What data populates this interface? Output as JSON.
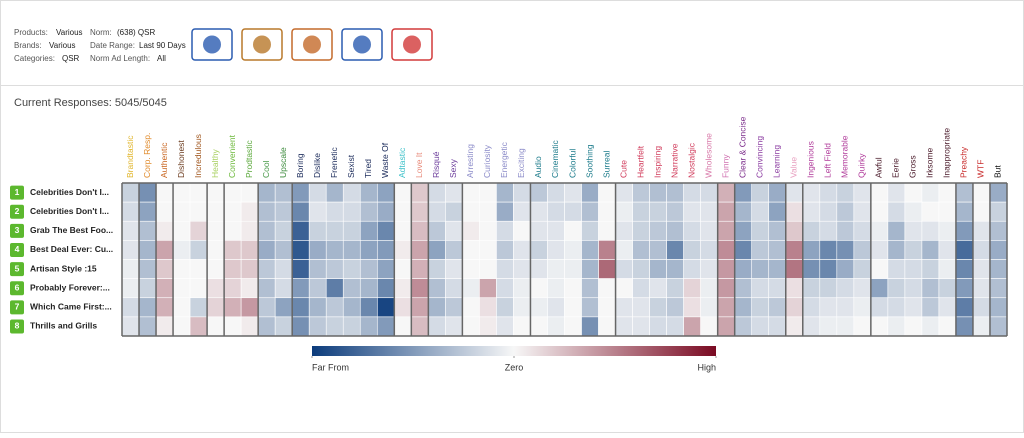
{
  "filters": {
    "products_label": "Products:",
    "products": "Various",
    "brands_label": "Brands:",
    "brands": "Various",
    "categories_label": "Categories:",
    "categories": "QSR",
    "norm_label": "Norm:",
    "norm": "(638) QSR",
    "date_range_label": "Date Range:",
    "date_range": "Last 90 Days",
    "norm_length_label": "Norm Ad Length:",
    "norm_length": "All"
  },
  "brand_logo_colors": [
    "#2a5bb0",
    "#b8782a",
    "#c46a2a",
    "#2a5bb0",
    "#d23a3a"
  ],
  "responses": "Current Responses: 5045/5045",
  "chart_data": {
    "type": "heatmap",
    "categories": [
      "Brandtastic",
      "Corp. Resp.",
      "Authentic",
      "Dishonest",
      "Incredulous",
      "Healthy",
      "Convenient",
      "Prodtastic",
      "Cool",
      "Upscale",
      "Boring",
      "Dislike",
      "Frenetic",
      "Sexist",
      "Tired",
      "Waste Of",
      "Adtastic",
      "Love It",
      "Risqué",
      "Sexy",
      "Arresting",
      "Curiosity",
      "Energetic",
      "Exciting",
      "Audio",
      "Cinematic",
      "Colorful",
      "Soothing",
      "Surreal",
      "Cute",
      "Heartfelt",
      "Inspiring",
      "Narrative",
      "Nostalgic",
      "Wholesome",
      "Funny",
      "Clear & Concise",
      "Convincing",
      "Learning",
      "Value",
      "Ingenious",
      "Left Field",
      "Memorable",
      "Quirky",
      "Awful",
      "Eerie",
      "Gross",
      "Irksome",
      "Inappropriate",
      "Preachy",
      "WTF",
      "But"
    ],
    "category_colors": [
      "#e0b52a",
      "#e08a2a",
      "#c8641e",
      "#6b3b1e",
      "#a0561e",
      "#a8d060",
      "#6cb83a",
      "#5aa83a",
      "#4a9a4a",
      "#3a8a3a",
      "#1a2a5a",
      "#1a2a5a",
      "#1a2a5a",
      "#1a2a5a",
      "#1a2a5a",
      "#1a2a5a",
      "#3ac0c8",
      "#e88a7a",
      "#6a3a9a",
      "#6a3a9a",
      "#8a8ac8",
      "#8a8ac8",
      "#8a8ac8",
      "#8a8ac8",
      "#1a7a8a",
      "#1a7a8a",
      "#1a7a8a",
      "#1a7a8a",
      "#1a7a8a",
      "#d03a5a",
      "#d03a5a",
      "#d03a5a",
      "#d03a5a",
      "#d03a5a",
      "#d878a8",
      "#d070b0",
      "#7a2a8a",
      "#8a3aa0",
      "#8a3aa0",
      "#e8a0c0",
      "#b03a9a",
      "#b03a9a",
      "#b03a9a",
      "#b03a9a",
      "#4a1a2a",
      "#4a1a2a",
      "#4a1a2a",
      "#4a1a2a",
      "#4a1a2a",
      "#c82a2a",
      "#c82a2a",
      "#111111"
    ],
    "rows": [
      "Celebrities Don't I...",
      "Celebrities Don't I...",
      "Grab The Best Foo...",
      "Best Deal Ever: Cu...",
      "Artisan Style :15",
      "Probably Forever:...",
      "Which Came First:...",
      "Thrills and Grills"
    ],
    "row_numbers": [
      1,
      2,
      3,
      4,
      5,
      6,
      7,
      8
    ],
    "values": [
      [
        -0.2,
        -0.15,
        -0.1,
        -0.1,
        -0.05,
        -0.05,
        -0.15,
        -0.1
      ],
      [
        -0.55,
        -0.45,
        -0.3,
        -0.35,
        -0.3,
        -0.2,
        -0.35,
        -0.3
      ],
      [
        0,
        0,
        0.05,
        0.35,
        0.2,
        0.3,
        0.3,
        0.05
      ],
      [
        0,
        0,
        0,
        -0.05,
        0,
        0,
        0,
        0
      ],
      [
        0,
        0,
        0.15,
        -0.2,
        0,
        0,
        -0.2,
        0.25
      ],
      [
        0,
        0,
        0,
        0,
        0,
        0.1,
        0.15,
        0
      ],
      [
        0,
        0,
        0,
        0.2,
        0.2,
        0.15,
        0.3,
        0
      ],
      [
        0,
        0.05,
        0.05,
        0.2,
        0.2,
        0.05,
        0.4,
        0.05
      ],
      [
        -0.35,
        -0.3,
        -0.3,
        -0.4,
        -0.25,
        -0.3,
        -0.25,
        -0.3
      ],
      [
        -0.3,
        -0.25,
        -0.2,
        -0.3,
        -0.15,
        -0.15,
        -0.45,
        -0.2
      ],
      [
        -0.5,
        -0.6,
        -0.8,
        -0.85,
        -0.8,
        -0.5,
        -0.6,
        -0.55
      ],
      [
        -0.15,
        -0.1,
        -0.2,
        -0.4,
        -0.3,
        -0.25,
        -0.35,
        -0.25
      ],
      [
        -0.35,
        -0.15,
        -0.2,
        -0.35,
        -0.25,
        -0.65,
        -0.25,
        -0.2
      ],
      [
        -0.15,
        -0.15,
        -0.2,
        -0.35,
        -0.2,
        -0.3,
        -0.35,
        -0.2
      ],
      [
        -0.35,
        -0.3,
        -0.45,
        -0.45,
        -0.3,
        -0.35,
        -0.6,
        -0.35
      ],
      [
        -0.45,
        -0.4,
        -0.6,
        -0.5,
        -0.45,
        -0.6,
        -0.95,
        -0.5
      ],
      [
        0,
        0,
        0,
        0.05,
        0,
        0.05,
        0.1,
        0
      ],
      [
        0.2,
        0.2,
        0.25,
        0.35,
        0.3,
        0.45,
        0.35,
        0.25
      ],
      [
        -0.15,
        -0.15,
        -0.25,
        -0.45,
        -0.2,
        -0.3,
        -0.35,
        -0.15
      ],
      [
        -0.1,
        -0.2,
        -0.1,
        -0.25,
        -0.1,
        -0.15,
        -0.25,
        -0.1
      ],
      [
        0,
        0,
        0.05,
        0,
        0,
        -0.05,
        0,
        0
      ],
      [
        0,
        0,
        0,
        0,
        0,
        0.35,
        0.1,
        0.05
      ],
      [
        -0.35,
        -0.4,
        -0.15,
        -0.25,
        -0.15,
        -0.15,
        -0.2,
        -0.1
      ],
      [
        -0.15,
        -0.1,
        0,
        -0.1,
        -0.1,
        -0.05,
        -0.05,
        0
      ],
      [
        -0.25,
        -0.1,
        -0.1,
        -0.2,
        -0.1,
        0,
        -0.05,
        0
      ],
      [
        -0.15,
        -0.15,
        -0.1,
        -0.1,
        -0.05,
        -0.05,
        -0.1,
        -0.05
      ],
      [
        -0.1,
        -0.15,
        0,
        -0.05,
        -0.05,
        0,
        0,
        0
      ],
      [
        -0.4,
        -0.3,
        -0.2,
        -0.35,
        -0.35,
        -0.3,
        -0.3,
        -0.55
      ],
      [
        0,
        0,
        0,
        0.5,
        0.6,
        0,
        0,
        0
      ],
      [
        -0.1,
        -0.05,
        -0.1,
        -0.05,
        -0.15,
        0,
        -0.1,
        -0.1
      ],
      [
        -0.25,
        -0.2,
        -0.2,
        -0.3,
        -0.2,
        -0.15,
        -0.1,
        -0.1
      ],
      [
        -0.3,
        -0.2,
        -0.25,
        -0.3,
        -0.35,
        -0.1,
        -0.2,
        -0.15
      ],
      [
        -0.3,
        -0.25,
        -0.3,
        -0.6,
        -0.35,
        -0.2,
        -0.25,
        -0.15
      ],
      [
        -0.15,
        -0.1,
        -0.15,
        -0.2,
        -0.15,
        0.15,
        0.1,
        0.35
      ],
      [
        -0.15,
        -0.1,
        -0.1,
        -0.15,
        -0.1,
        -0.05,
        -0.05,
        0
      ],
      [
        0.3,
        0.35,
        0.35,
        0.45,
        0.4,
        0.4,
        0.35,
        0.35
      ],
      [
        -0.5,
        -0.35,
        -0.45,
        -0.6,
        -0.4,
        -0.3,
        -0.35,
        -0.25
      ],
      [
        -0.2,
        -0.15,
        -0.2,
        -0.25,
        -0.35,
        -0.15,
        -0.2,
        -0.15
      ],
      [
        -0.4,
        -0.45,
        -0.3,
        -0.3,
        -0.35,
        -0.15,
        -0.25,
        -0.15
      ],
      [
        -0.1,
        0.1,
        0.2,
        0.5,
        0.55,
        0.1,
        0.15,
        0.05
      ],
      [
        -0.1,
        -0.1,
        -0.2,
        -0.45,
        -0.55,
        -0.2,
        -0.15,
        -0.1
      ],
      [
        -0.15,
        -0.15,
        -0.15,
        -0.6,
        -0.6,
        -0.2,
        -0.1,
        -0.05
      ],
      [
        -0.2,
        -0.25,
        -0.25,
        -0.55,
        -0.4,
        -0.15,
        -0.1,
        -0.05
      ],
      [
        -0.1,
        -0.1,
        -0.15,
        -0.25,
        -0.2,
        -0.1,
        -0.05,
        0
      ],
      [
        0,
        0,
        -0.05,
        -0.1,
        0,
        -0.45,
        -0.15,
        0
      ],
      [
        -0.1,
        -0.15,
        -0.35,
        -0.35,
        -0.15,
        -0.2,
        -0.15,
        -0.05
      ],
      [
        0,
        -0.05,
        -0.1,
        -0.2,
        -0.15,
        -0.15,
        -0.1,
        0
      ],
      [
        -0.05,
        0,
        -0.1,
        -0.35,
        -0.2,
        -0.3,
        -0.25,
        -0.05
      ],
      [
        0,
        0,
        -0.05,
        -0.1,
        -0.05,
        -0.2,
        -0.1,
        0
      ],
      [
        -0.3,
        -0.35,
        -0.5,
        -0.75,
        -0.6,
        -0.5,
        -0.65,
        -0.55
      ],
      [
        0,
        0,
        -0.1,
        -0.15,
        -0.1,
        -0.1,
        -0.15,
        -0.05
      ],
      [
        -0.4,
        -0.2,
        -0.3,
        -0.4,
        -0.35,
        -0.3,
        -0.35,
        -0.3
      ]
    ],
    "zlim": [
      -1,
      1
    ],
    "colorbar_ticks": [
      {
        "value": -1,
        "label": "Far From"
      },
      {
        "value": 0,
        "label": "Zero"
      },
      {
        "value": 1,
        "label": "High"
      }
    ],
    "colors": [
      "#0c3c7c",
      "#f7f7f7",
      "#7a0a22"
    ]
  }
}
